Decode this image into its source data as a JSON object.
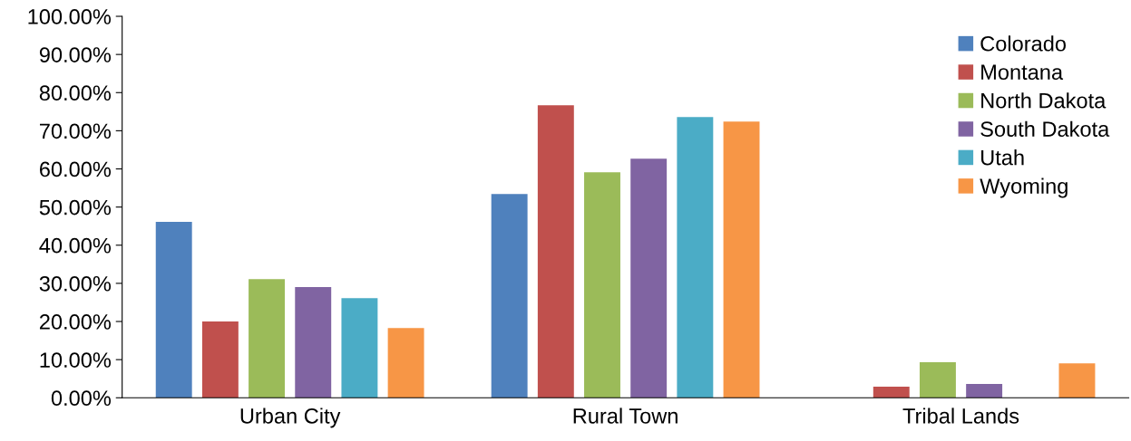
{
  "chart_data": {
    "type": "bar",
    "categories": [
      "Urban City",
      "Rural Town",
      "Tribal Lands"
    ],
    "series": [
      {
        "name": "Colorado",
        "color": "#4f81bd",
        "values": [
          46.1,
          53.4,
          0
        ]
      },
      {
        "name": "Montana",
        "color": "#c0504d",
        "values": [
          20.0,
          76.7,
          2.9
        ]
      },
      {
        "name": "North Dakota",
        "color": "#9bbb59",
        "values": [
          31.1,
          59.1,
          9.3
        ]
      },
      {
        "name": "South Dakota",
        "color": "#8064a2",
        "values": [
          29.0,
          62.7,
          3.6
        ]
      },
      {
        "name": "Utah",
        "color": "#4bacc6",
        "values": [
          26.1,
          73.6,
          0
        ]
      },
      {
        "name": "Wyoming",
        "color": "#f79646",
        "values": [
          18.3,
          72.4,
          9.0
        ]
      }
    ],
    "ylim": [
      0,
      100
    ],
    "yticks": [
      {
        "value": 0,
        "label": "0.00%"
      },
      {
        "value": 10,
        "label": "10.00%"
      },
      {
        "value": 20,
        "label": "20.00%"
      },
      {
        "value": 30,
        "label": "30.00%"
      },
      {
        "value": 40,
        "label": "40.00%"
      },
      {
        "value": 50,
        "label": "50.00%"
      },
      {
        "value": 60,
        "label": "60.00%"
      },
      {
        "value": 70,
        "label": "70.00%"
      },
      {
        "value": 80,
        "label": "80.00%"
      },
      {
        "value": 90,
        "label": "90.00%"
      },
      {
        "value": 100,
        "label": "100.00%"
      }
    ],
    "grid": false,
    "legend": "top right"
  }
}
